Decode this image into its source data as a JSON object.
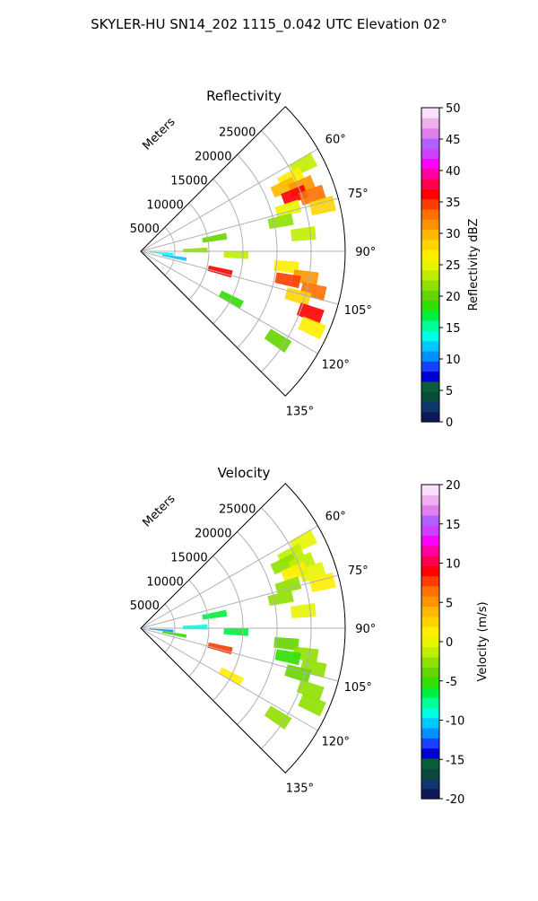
{
  "figure": {
    "title": "SKYLER-HU  SN14_202  1115_0.042 UTC Elevation 02°"
  },
  "chart_data": [
    {
      "type": "heatmap",
      "projection": "polar-sector",
      "title": "Reflectivity",
      "range_label": "Meters",
      "range_max": 30000,
      "azimuth_range": [
        45,
        135
      ],
      "range_ticks": [
        5000,
        10000,
        15000,
        20000,
        25000
      ],
      "range_tick_labels": [
        "5000",
        "10000",
        "15000",
        "20000",
        "25000"
      ],
      "azimuth_ticks": [
        60,
        75,
        90,
        105,
        120,
        135
      ],
      "azimuth_tick_labels": [
        "60°",
        "75°",
        "90°",
        "105°",
        "120°",
        "135°"
      ],
      "grid": true,
      "colorbar": {
        "label": "Reflectivity dBZ",
        "range": [
          0,
          50
        ],
        "ticks": [
          0,
          5,
          10,
          15,
          20,
          25,
          30,
          35,
          40,
          45,
          50
        ],
        "tick_labels": [
          "0",
          "5",
          "10",
          "15",
          "20",
          "25",
          "30",
          "35",
          "40",
          "45",
          "50"
        ],
        "colors": [
          "#0b1a5a",
          "#10376b",
          "#0a4a3a",
          "#0a5e3a",
          "#0000d0",
          "#1a40ff",
          "#0090ff",
          "#00c8ff",
          "#00ffe0",
          "#00ff9a",
          "#00f040",
          "#30e000",
          "#66d400",
          "#90e000",
          "#c0ee00",
          "#e8f400",
          "#ffee00",
          "#ffd400",
          "#ffb800",
          "#ff9400",
          "#ff7000",
          "#ff3c00",
          "#ff0000",
          "#ff0050",
          "#ff00a0",
          "#ff00ff",
          "#d040ff",
          "#b060ff",
          "#e080f0",
          "#f0b0f0",
          "#fbe0fb"
        ]
      },
      "cells": [
        {
          "az": 62,
          "r": 27000,
          "value": 24
        },
        {
          "az": 64,
          "r": 24500,
          "value": 27
        },
        {
          "az": 66,
          "r": 23000,
          "value": 30
        },
        {
          "az": 68,
          "r": 25500,
          "value": 32
        },
        {
          "az": 70,
          "r": 24000,
          "value": 36
        },
        {
          "az": 72,
          "r": 26500,
          "value": 33
        },
        {
          "az": 74,
          "r": 22500,
          "value": 25
        },
        {
          "az": 76,
          "r": 27500,
          "value": 28
        },
        {
          "az": 78,
          "r": 21000,
          "value": 22
        },
        {
          "az": 84,
          "r": 24000,
          "value": 23
        },
        {
          "az": 96,
          "r": 21500,
          "value": 26
        },
        {
          "az": 99,
          "r": 24500,
          "value": 31
        },
        {
          "az": 101,
          "r": 22000,
          "value": 35
        },
        {
          "az": 103,
          "r": 26000,
          "value": 33
        },
        {
          "az": 106,
          "r": 24000,
          "value": 29
        },
        {
          "az": 110,
          "r": 26500,
          "value": 37
        },
        {
          "az": 114,
          "r": 27500,
          "value": 27
        },
        {
          "az": 89,
          "r": 8000,
          "value": 22
        },
        {
          "az": 92,
          "r": 14000,
          "value": 24
        },
        {
          "az": 80,
          "r": 11000,
          "value": 20
        },
        {
          "az": 104,
          "r": 12000,
          "value": 36
        },
        {
          "az": 118,
          "r": 15000,
          "value": 18
        },
        {
          "az": 123,
          "r": 24000,
          "value": 20
        },
        {
          "az": 100,
          "r": 5000,
          "value": 12
        },
        {
          "az": 95,
          "r": 3000,
          "value": 14
        }
      ]
    },
    {
      "type": "heatmap",
      "projection": "polar-sector",
      "title": "Velocity",
      "range_label": "Meters",
      "range_max": 30000,
      "azimuth_range": [
        45,
        135
      ],
      "range_ticks": [
        5000,
        10000,
        15000,
        20000,
        25000
      ],
      "range_tick_labels": [
        "5000",
        "10000",
        "15000",
        "20000",
        "25000"
      ],
      "azimuth_ticks": [
        60,
        75,
        90,
        105,
        120,
        135
      ],
      "azimuth_tick_labels": [
        "60°",
        "75°",
        "90°",
        "105°",
        "120°",
        "135°"
      ],
      "grid": true,
      "colorbar": {
        "label": "Velocity (m/s)",
        "range": [
          -20,
          20
        ],
        "ticks": [
          -20,
          -15,
          -10,
          -5,
          0,
          5,
          10,
          15,
          20
        ],
        "tick_labels": [
          "-20",
          "-15",
          "-10",
          "-5",
          "0",
          "5",
          "10",
          "15",
          "20"
        ],
        "colors": [
          "#0b1a5a",
          "#10376b",
          "#0a4a3a",
          "#0a5e3a",
          "#0000d0",
          "#1a40ff",
          "#0090ff",
          "#00c8ff",
          "#00ffe0",
          "#00ff9a",
          "#00f040",
          "#30e000",
          "#66d400",
          "#90e000",
          "#c0ee00",
          "#e8f400",
          "#ffee00",
          "#ffd400",
          "#ffb800",
          "#ff9400",
          "#ff7000",
          "#ff3c00",
          "#ff0000",
          "#ff0050",
          "#ff00a0",
          "#ff00ff",
          "#d040ff",
          "#b060ff",
          "#e080f0",
          "#f0b0f0",
          "#fbe0fb"
        ]
      },
      "cells": [
        {
          "az": 62,
          "r": 27000,
          "value": 0
        },
        {
          "az": 64,
          "r": 24500,
          "value": -1
        },
        {
          "az": 66,
          "r": 23000,
          "value": -2
        },
        {
          "az": 68,
          "r": 25500,
          "value": -1
        },
        {
          "az": 70,
          "r": 24000,
          "value": 1
        },
        {
          "az": 72,
          "r": 26500,
          "value": 0
        },
        {
          "az": 74,
          "r": 22500,
          "value": -3
        },
        {
          "az": 76,
          "r": 27500,
          "value": 1
        },
        {
          "az": 78,
          "r": 21000,
          "value": -2
        },
        {
          "az": 84,
          "r": 24000,
          "value": 0
        },
        {
          "az": 96,
          "r": 21500,
          "value": -4
        },
        {
          "az": 99,
          "r": 24500,
          "value": -3
        },
        {
          "az": 101,
          "r": 22000,
          "value": -5
        },
        {
          "az": 103,
          "r": 26000,
          "value": -2
        },
        {
          "az": 106,
          "r": 24000,
          "value": -4
        },
        {
          "az": 110,
          "r": 26500,
          "value": -3
        },
        {
          "az": 114,
          "r": 27500,
          "value": -2
        },
        {
          "az": 89,
          "r": 8000,
          "value": -9
        },
        {
          "az": 92,
          "r": 14000,
          "value": -6
        },
        {
          "az": 80,
          "r": 11000,
          "value": -6
        },
        {
          "az": 104,
          "r": 12000,
          "value": 8
        },
        {
          "az": 118,
          "r": 15000,
          "value": 1
        },
        {
          "az": 123,
          "r": 24000,
          "value": -3
        },
        {
          "az": 100,
          "r": 5000,
          "value": -5
        },
        {
          "az": 95,
          "r": 3000,
          "value": -11
        }
      ]
    }
  ]
}
